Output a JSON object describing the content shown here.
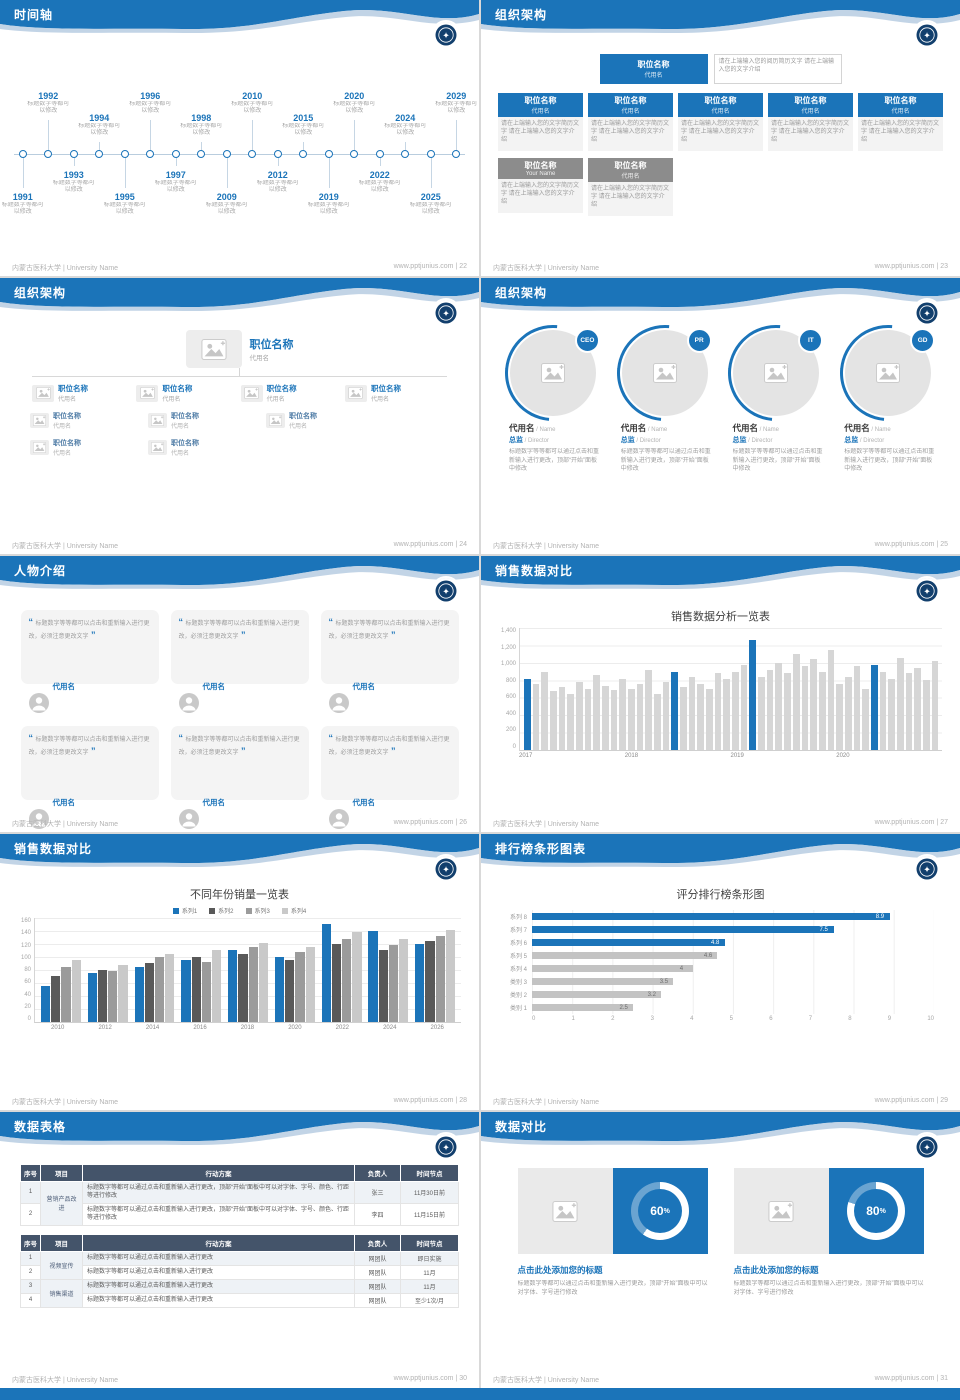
{
  "page": {
    "background": "#d9d9d9",
    "accent": "#1b74b9",
    "header_blue": "#1b74b9",
    "bottom_bar_color": "#1b74b9"
  },
  "footer": {
    "organization": "内蒙古医科大学 | University Name",
    "website": "www.pptjunius.com"
  },
  "slides": [
    {
      "type": "timeline",
      "page": "22",
      "title": "时间轴",
      "caption": "标题数字等都可以修改",
      "years": [
        "1991",
        "1992",
        "1993",
        "1994",
        "1995",
        "1996",
        "1997",
        "1998",
        "2009",
        "2010",
        "2012",
        "2015",
        "2019",
        "2020",
        "2022",
        "2024",
        "2025",
        "2029"
      ]
    },
    {
      "type": "org-boxes",
      "page": "23",
      "title": "组织架构",
      "root": {
        "title": "职位名称",
        "subtitle": "代用名"
      },
      "root_note": "请在上端输入您的阅历简历文字 请在上端输入您的文字介绍",
      "desc": "请在上端输入您的文字简历文字 请在上端输入您的文字介绍",
      "blue_boxes": [
        {
          "title": "职位名称",
          "subtitle": "代用名"
        },
        {
          "title": "职位名称",
          "subtitle": "代用名"
        },
        {
          "title": "职位名称",
          "subtitle": "代用名"
        },
        {
          "title": "职位名称",
          "subtitle": "代用名"
        },
        {
          "title": "职位名称",
          "subtitle": "代用名"
        }
      ],
      "gray_boxes": [
        {
          "title": "职位名称",
          "subtitle": "Your Name"
        },
        {
          "title": "职位名称",
          "subtitle": "代用名"
        }
      ]
    },
    {
      "type": "org-tree",
      "page": "24",
      "title": "组织架构",
      "root": {
        "title": "职位名称",
        "subtitle": "代用名"
      },
      "children": [
        {
          "title": "职位名称",
          "subtitle": "代用名"
        },
        {
          "title": "职位名称",
          "subtitle": "代用名"
        },
        {
          "title": "职位名称",
          "subtitle": "代用名"
        },
        {
          "title": "职位名称",
          "subtitle": "代用名"
        }
      ],
      "leaves": [
        {
          "title": "职位名称",
          "subtitle": "代用名"
        },
        {
          "title": "职位名称",
          "subtitle": "代用名"
        },
        {
          "title": "职位名称",
          "subtitle": "代用名"
        },
        {
          "title": "职位名称",
          "subtitle": "代用名"
        },
        {
          "title": "职位名称",
          "subtitle": "代用名"
        }
      ]
    },
    {
      "type": "org-circles",
      "page": "25",
      "title": "组织架构",
      "members": [
        {
          "badge": "CEO",
          "name": "代用名",
          "name_en": "/ Name",
          "role": "总监",
          "role_en": "/ Director",
          "desc": "标题数字等等都可以通过点击和重新输入进行更改，顶部“开始”面板中修改"
        },
        {
          "badge": "PR",
          "name": "代用名",
          "name_en": "/ Name",
          "role": "总监",
          "role_en": "/ Director",
          "desc": "标题数字等等都可以通过点击和重新输入进行更改，顶部“开始”面板中修改"
        },
        {
          "badge": "IT",
          "name": "代用名",
          "name_en": "/ Name",
          "role": "总监",
          "role_en": "/ Director",
          "desc": "标题数字等等都可以通过点击和重新输入进行更改，顶部“开始”面板中修改"
        },
        {
          "badge": "GD",
          "name": "代用名",
          "name_en": "/ Name",
          "role": "总监",
          "role_en": "/ Director",
          "desc": "标题数字等等都可以通过点击和重新输入进行更改，顶部“开始”面板中修改"
        }
      ]
    },
    {
      "type": "people",
      "page": "26",
      "title": "人物介绍",
      "cards": [
        {
          "quote": "标题数字等等都可以点击和重新输入进行更改，必须注意更改文字",
          "name": "代用名"
        },
        {
          "quote": "标题数字等等都可以点击和重新输入进行更改，必须注意更改文字",
          "name": "代用名"
        },
        {
          "quote": "标题数字等等都可以点击和重新输入进行更改，必须注意更改文字",
          "name": "代用名"
        },
        {
          "quote": "标题数字等等都可以点击和重新输入进行更改，必须注意更改文字",
          "name": "代用名"
        },
        {
          "quote": "标题数字等等都可以点击和重新输入进行更改，必须注意更改文字",
          "name": "代用名"
        },
        {
          "quote": "标题数字等等都可以点击和重新输入进行更改，必须注意更改文字",
          "name": "代用名"
        }
      ]
    },
    {
      "type": "chart-monthly",
      "page": "27",
      "title": "销售数据对比",
      "chart_ref": 0
    },
    {
      "type": "chart-grouped",
      "page": "28",
      "title": "销售数据对比",
      "chart_ref": 1
    },
    {
      "type": "chart-ranking",
      "page": "29",
      "title": "排行榜条形图表",
      "chart_ref": 2
    },
    {
      "type": "tables",
      "page": "30",
      "title": "数据表格",
      "tables": [
        {
          "headers": [
            "序号",
            "项目",
            "行动方案",
            "负责人",
            "时间节点"
          ],
          "compact": false,
          "groups": [
            {
              "label": "营销产品改进",
              "span": 2
            }
          ],
          "rows": [
            {
              "no": "1",
              "action": "标题数字等都可以通过点击和重新输入进行更改，顶部“开始”面板中可以对字体、字号、颜色、行距等进行修改",
              "owner": "张三",
              "time": "11月30日前"
            },
            {
              "no": "2",
              "action": "标题数字等都可以通过点击和重新输入进行更改，顶部“开始”面板中可以对字体、字号、颜色、行距等进行修改",
              "owner": "李四",
              "time": "11月15日前"
            }
          ]
        },
        {
          "headers": [
            "序号",
            "项目",
            "行动方案",
            "负责人",
            "时间节点"
          ],
          "compact": true,
          "groups": [
            {
              "label": "视频宣传",
              "span": 2
            },
            {
              "label": "销售渠道",
              "span": 2
            }
          ],
          "rows": [
            {
              "no": "1",
              "action": "标题数字等都可以通过点击和重新输入进行更改",
              "owner": "网团队",
              "time": "即日实施"
            },
            {
              "no": "2",
              "action": "标题数字等都可以通过点击和重新输入进行更改",
              "owner": "网团队",
              "time": "11月"
            },
            {
              "no": "3",
              "action": "标题数字等都可以通过点击和重新输入进行更改",
              "owner": "网团队",
              "time": "11月"
            },
            {
              "no": "4",
              "action": "标题数字等都可以通过点击和重新输入进行更改",
              "owner": "网团队",
              "time": "至少1次/月"
            }
          ]
        }
      ]
    },
    {
      "type": "donuts",
      "page": "31",
      "title": "数据对比",
      "cards": [
        {
          "percent": 60,
          "title": "点击此处添加您的标题",
          "desc": "标题数字等都可以通过点击和重新输入进行更改，顶部“开始”面板中可以对字体、字号进行修改"
        },
        {
          "percent": 80,
          "title": "点击此处添加您的标题",
          "desc": "标题数字等都可以通过点击和重新输入进行更改，顶部“开始”面板中可以对字体、字号进行修改"
        }
      ]
    }
  ],
  "chart_data": [
    {
      "type": "bar",
      "title": "销售数据分析一览表",
      "slide_page": "27",
      "x_groups": [
        "2017",
        "2018",
        "2019",
        "2020"
      ],
      "values": [
        820,
        760,
        900,
        680,
        720,
        640,
        780,
        700,
        860,
        740,
        690,
        810,
        700,
        760,
        920,
        640,
        780,
        900,
        720,
        840,
        760,
        700,
        880,
        820,
        900,
        980,
        1260,
        840,
        920,
        1000,
        880,
        1100,
        960,
        1040,
        900,
        1150,
        760,
        840,
        960,
        700,
        980,
        900,
        820,
        1060,
        880,
        940,
        800,
        1020
      ],
      "highlight_indices": [
        0,
        17,
        26,
        40
      ],
      "bar_color": "#d6d6d6",
      "highlight_color": "#1b74b9",
      "ylim": [
        0,
        1400
      ],
      "yticks": [
        "0",
        "200",
        "400",
        "600",
        "800",
        "1,000",
        "1,200",
        "1,400"
      ],
      "grid": true,
      "legend_position": "none"
    },
    {
      "type": "bar",
      "title": "不同年份销量一览表",
      "slide_page": "28",
      "categories": [
        "2010",
        "2012",
        "2014",
        "2016",
        "2018",
        "2020",
        "2022",
        "2024",
        "2026"
      ],
      "series": [
        {
          "name": "系列1",
          "color": "#1b74b9",
          "values": [
            55,
            75,
            85,
            95,
            110,
            100,
            150,
            140,
            120
          ]
        },
        {
          "name": "系列2",
          "color": "#595959",
          "values": [
            70,
            80,
            90,
            100,
            105,
            95,
            120,
            110,
            125
          ]
        },
        {
          "name": "系列3",
          "color": "#9b9b9b",
          "values": [
            85,
            78,
            100,
            92,
            115,
            108,
            128,
            118,
            132
          ]
        },
        {
          "name": "系列4",
          "color": "#c9c9c9",
          "values": [
            95,
            88,
            105,
            110,
            122,
            116,
            138,
            128,
            142
          ]
        }
      ],
      "ylim": [
        0,
        160
      ],
      "yticks_desc": [
        "160",
        "140",
        "120",
        "100",
        "80",
        "60",
        "40",
        "20",
        "0"
      ],
      "grid": true,
      "legend_position": "top"
    },
    {
      "type": "bar",
      "title": "评分排行榜条形图",
      "slide_page": "29",
      "orientation": "horizontal",
      "categories": [
        "系列 8",
        "系列 7",
        "系列 6",
        "系列 5",
        "系列 4",
        "类别 3",
        "类别 2",
        "类别 1"
      ],
      "values": [
        8.9,
        7.5,
        4.8,
        4.6,
        4,
        3.5,
        3.2,
        2.5
      ],
      "bar_colors": [
        "#1b74b9",
        "#1b74b9",
        "#1b74b9",
        "#c3c3c3",
        "#c3c3c3",
        "#c3c3c3",
        "#c3c3c3",
        "#c3c3c3"
      ],
      "xlim": [
        0,
        10
      ],
      "xticks": [
        "0",
        "1",
        "2",
        "3",
        "4",
        "5",
        "6",
        "7",
        "8",
        "9",
        "10"
      ],
      "grid": true
    },
    {
      "type": "pie",
      "subtype": "donut-progress",
      "title": "数据对比",
      "slide_page": "31",
      "values": [
        60,
        80
      ],
      "unit": "%"
    }
  ]
}
